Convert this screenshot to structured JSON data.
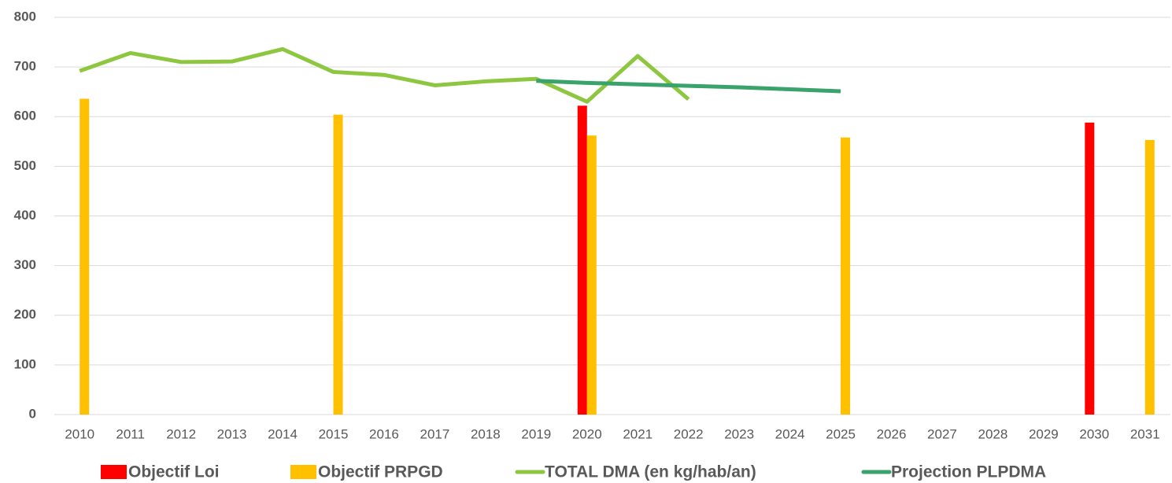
{
  "chart_data": {
    "type": "combo",
    "categories": [
      "2010",
      "2011",
      "2012",
      "2013",
      "2014",
      "2015",
      "2016",
      "2017",
      "2018",
      "2019",
      "2020",
      "2021",
      "2022",
      "2023",
      "2024",
      "2025",
      "2026",
      "2027",
      "2028",
      "2029",
      "2030",
      "2031"
    ],
    "series": [
      {
        "name": "Objectif Loi",
        "type": "bar",
        "color": "#ff0000",
        "values": [
          null,
          null,
          null,
          null,
          null,
          null,
          null,
          null,
          null,
          null,
          622,
          null,
          null,
          null,
          null,
          null,
          null,
          null,
          null,
          null,
          588,
          null
        ]
      },
      {
        "name": "Objectif PRPGD",
        "type": "bar",
        "color": "#ffc000",
        "values": [
          636,
          null,
          null,
          null,
          null,
          604,
          null,
          null,
          null,
          null,
          562,
          null,
          null,
          null,
          null,
          558,
          null,
          null,
          null,
          null,
          null,
          553
        ]
      },
      {
        "name": "TOTAL DMA (en kg/hab/an)",
        "type": "line",
        "color": "#8dc63f",
        "values": [
          692,
          728,
          710,
          711,
          736,
          690,
          684,
          663,
          671,
          676,
          630,
          722,
          635,
          null,
          null,
          null,
          null,
          null,
          null,
          null,
          null,
          null
        ]
      },
      {
        "name": "Projection PLPDMA",
        "type": "line",
        "color": "#3aa36b",
        "values": [
          null,
          null,
          null,
          null,
          null,
          null,
          null,
          null,
          null,
          672,
          668,
          665,
          662,
          659,
          655,
          651,
          null,
          null,
          null,
          null,
          null,
          null
        ]
      }
    ],
    "ylim": [
      0,
      800
    ],
    "yticks": [
      0,
      100,
      200,
      300,
      400,
      500,
      600,
      700,
      800
    ],
    "grid": true,
    "legend": "bottom"
  }
}
